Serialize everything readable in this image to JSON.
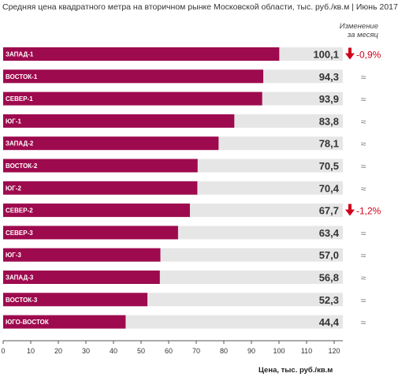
{
  "title": "Средняя цена квадратного метра на вторичном рынке Московской области, тыс. руб./кв.м | Июнь 2017",
  "change_header": [
    "Изменение",
    "за месяц"
  ],
  "colors": {
    "bar": "#9e0a4e",
    "track": "#e6e6e6",
    "down": "#d0021b",
    "approx": "#777777",
    "axis": "#555555"
  },
  "chart_data": {
    "type": "bar",
    "orientation": "horizontal",
    "title": "Средняя цена квадратного метра на вторичном рынке Московской области, тыс. руб./кв.м | Июнь 2017",
    "xlabel": "Цена, тыс. руб./кв.м",
    "xlim": [
      0,
      120
    ],
    "xticks": [
      0,
      10,
      20,
      30,
      40,
      50,
      60,
      70,
      80,
      90,
      100,
      110,
      120
    ],
    "categories": [
      "ЗАПАД-1",
      "ВОСТОК-1",
      "СЕВЕР-1",
      "ЮГ-1",
      "ЗАПАД-2",
      "ВОСТОК-2",
      "ЮГ-2",
      "СЕВЕР-2",
      "СЕВЕР-3",
      "ЮГ-3",
      "ЗАПАД-3",
      "ВОСТОК-3",
      "ЮГО-ВОСТОК"
    ],
    "values": [
      100.1,
      94.3,
      93.9,
      83.8,
      78.1,
      70.5,
      70.4,
      67.7,
      63.4,
      57.0,
      56.8,
      52.3,
      44.4
    ],
    "value_labels": [
      "100,1",
      "94,3",
      "93,9",
      "83,8",
      "78,1",
      "70,5",
      "70,4",
      "67,7",
      "63,4",
      "57,0",
      "56,8",
      "52,3",
      "44,4"
    ],
    "changes": [
      {
        "type": "down",
        "label": "-0,9%"
      },
      {
        "type": "approx",
        "label": "≈"
      },
      {
        "type": "approx",
        "label": "≈"
      },
      {
        "type": "approx",
        "label": "≈"
      },
      {
        "type": "approx",
        "label": "≈"
      },
      {
        "type": "approx",
        "label": "≈"
      },
      {
        "type": "approx",
        "label": "≈"
      },
      {
        "type": "down",
        "label": "-1,2%"
      },
      {
        "type": "approx",
        "label": "≈"
      },
      {
        "type": "approx",
        "label": "≈"
      },
      {
        "type": "approx",
        "label": "≈"
      },
      {
        "type": "approx",
        "label": "≈"
      },
      {
        "type": "approx",
        "label": "≈"
      }
    ]
  }
}
